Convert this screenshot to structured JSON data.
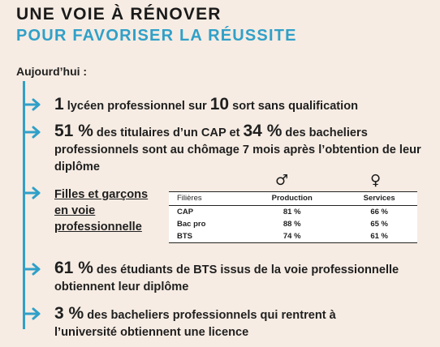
{
  "title": {
    "line1": "UNE VOIE À RÉNOVER",
    "line2": "POUR FAVORISER LA RÉUSSITE",
    "line1_color": "#1a1a1a",
    "line2_color": "#30a0c8"
  },
  "intro": "Aujourd’hui :",
  "accent_color": "#30a0c8",
  "items": [
    {
      "num": "1",
      "text_a": " lycéen professionnel sur ",
      "num2": "10",
      "text_b": " sort sans qualification"
    },
    {
      "num": "51 %",
      "text_a": " des titulaires d’un CAP et ",
      "num2": "34 %",
      "text_b": " des bacheliers professionnels sont au chômage 7 mois après l’obtention de leur diplôme"
    },
    {
      "label_lines": [
        "Filles et garçons",
        "en voie",
        "professionnelle"
      ]
    },
    {
      "num": "61 %",
      "text_a": " des étudiants de BTS issus de la voie professionnelle obtiennent leur diplôme"
    },
    {
      "num": "3 %",
      "text_a": " des bacheliers professionnels qui rentrent à l’université obtiennent une licence"
    }
  ],
  "symbols": {
    "male": "♂",
    "female": "♀"
  },
  "table": {
    "headers": [
      "Filières",
      "Production",
      "Services"
    ],
    "rows": [
      [
        "CAP",
        "81 %",
        "66 %"
      ],
      [
        "Bac pro",
        "88 %",
        "65 %"
      ],
      [
        "BTS",
        "74 %",
        "61 %"
      ]
    ]
  },
  "icons": [
    "arrow-right-icon"
  ]
}
